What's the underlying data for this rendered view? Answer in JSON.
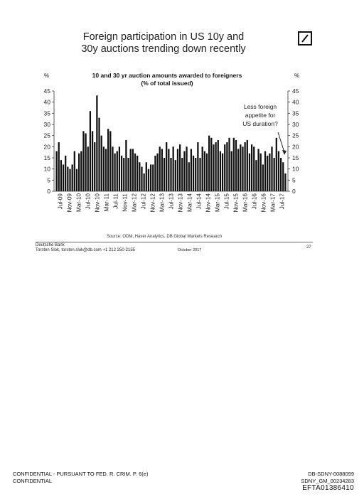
{
  "document": {
    "title_line1": "Foreign participation in US 10y and",
    "title_line2": "30y auctions trending down recently",
    "logo_name": "deutsche-bank-logo",
    "unit_left": "%",
    "unit_right": "%",
    "source": "Source: ODM, Haver Analytics, DB Global Markets Research",
    "bank_name": "Deutsche Bank",
    "author_line": "Torsten Slok, torsten.slok@db.com +1 212 250-2155",
    "date": "October 2017",
    "page_number": "27",
    "confidential_line1": "CONFIDENTIAL - PURSUANT TO FED. R. CRIM. P. 6(e)",
    "confidential_line2": "CONFIDENTIAL",
    "bates_1": "DB-SDNY-0088099",
    "bates_2": "SDNY_GM_00234283",
    "bates_3": "EFTA01386410"
  },
  "chart_data": {
    "type": "bar",
    "title": "10 and 30 yr auction amounts awarded to foreigners",
    "subtitle": "(% of total issued)",
    "ylim": [
      0,
      45
    ],
    "yticks": [
      0,
      5,
      10,
      15,
      20,
      25,
      30,
      35,
      40,
      45
    ],
    "x_tick_labels": [
      "Jul-09",
      "Nov-09",
      "Mar-10",
      "Jul-10",
      "Nov-10",
      "Mar-11",
      "Jul-11",
      "Nov-11",
      "Mar-12",
      "Jul-12",
      "Nov-12",
      "Mar-13",
      "Jul-13",
      "Nov-13",
      "Mar-14",
      "Jul-14",
      "Nov-14",
      "Mar-15",
      "Jul-15",
      "Nov-15",
      "Mar-16",
      "Jul-16",
      "Nov-16",
      "Mar-17",
      "Jul-17"
    ],
    "annotation": [
      "Less foreign",
      "appetite for",
      "US duration?"
    ],
    "grid": false,
    "legend": "none",
    "bar_color": "#111111",
    "values": [
      18,
      22,
      14,
      12,
      16,
      11,
      10,
      12,
      18,
      10,
      17,
      18,
      27,
      26,
      20,
      36,
      27,
      22,
      43,
      33,
      25,
      20,
      19,
      28,
      27,
      20,
      17,
      18,
      20,
      16,
      15,
      23,
      15,
      19,
      19,
      17,
      16,
      13,
      11,
      8,
      13,
      10,
      12,
      12,
      16,
      17,
      20,
      19,
      15,
      22,
      19,
      15,
      20,
      14,
      19,
      21,
      15,
      18,
      20,
      13,
      19,
      16,
      15,
      22,
      15,
      20,
      18,
      17,
      25,
      24,
      21,
      22,
      23,
      18,
      17,
      21,
      22,
      24,
      18,
      24,
      23,
      19,
      21,
      20,
      22,
      23,
      17,
      21,
      20,
      14,
      19,
      17,
      12,
      18,
      16,
      17,
      20,
      15,
      24,
      18,
      15,
      13,
      8
    ]
  }
}
